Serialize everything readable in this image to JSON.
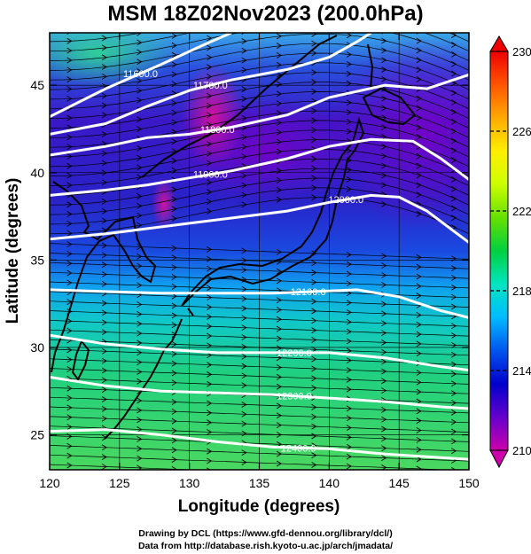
{
  "chart_data": {
    "type": "heatmap",
    "title": "MSM 18Z02Nov2023 (200.0hPa)",
    "xlabel": "Longitude (degrees)",
    "ylabel": "Latitude  (degrees)",
    "xlim": [
      120,
      150
    ],
    "ylim": [
      23,
      48
    ],
    "x_ticks": [
      "120",
      "125",
      "130",
      "135",
      "140",
      "145",
      "150"
    ],
    "y_ticks": [
      "25",
      "30",
      "35",
      "40",
      "45"
    ],
    "colorbar": {
      "min": 210,
      "max": 230,
      "ticks": [
        "210",
        "214",
        "218",
        "222",
        "226",
        "230"
      ],
      "colors": [
        "#cc00aa",
        "#6600cc",
        "#0000cc",
        "#0055ee",
        "#00bbff",
        "#00e5c0",
        "#00d040",
        "#66e000",
        "#ccff00",
        "#ffee00",
        "#ffaa00",
        "#ff5500",
        "#ee0000"
      ]
    },
    "contours": [
      {
        "label": "11600.0",
        "label_lon": 126.5,
        "points": [
          [
            120,
            43.2
          ],
          [
            124,
            44.8
          ],
          [
            128,
            46.2
          ],
          [
            131,
            47.3
          ],
          [
            133,
            48
          ]
        ]
      },
      {
        "label": "11700.0",
        "label_lon": 131.5,
        "points": [
          [
            120,
            42.2
          ],
          [
            124,
            42.8
          ],
          [
            127,
            43.8
          ],
          [
            130,
            44.7
          ],
          [
            133,
            45.3
          ],
          [
            137,
            45.9
          ],
          [
            140,
            46.6
          ],
          [
            142,
            47.5
          ],
          [
            143,
            48
          ]
        ]
      },
      {
        "label": "11800.0",
        "label_lon": 132.0,
        "points": [
          [
            120,
            41.0
          ],
          [
            124,
            41.5
          ],
          [
            127,
            42.0
          ],
          [
            130,
            42.2
          ],
          [
            133,
            42.6
          ],
          [
            137,
            43.3
          ],
          [
            140,
            44.3
          ],
          [
            144,
            45.0
          ],
          [
            147,
            44.8
          ],
          [
            150,
            45.6
          ]
        ]
      },
      {
        "label": "11900.0",
        "label_lon": 131.5,
        "points": [
          [
            120,
            38.7
          ],
          [
            124,
            39.0
          ],
          [
            127,
            39.3
          ],
          [
            130,
            39.7
          ],
          [
            133,
            40.1
          ],
          [
            137,
            40.8
          ],
          [
            140,
            41.5
          ],
          [
            143,
            41.9
          ],
          [
            146,
            41.8
          ],
          [
            148,
            40.8
          ],
          [
            150,
            39.6
          ]
        ]
      },
      {
        "label": "12000.0",
        "label_lon": 141.2,
        "points": [
          [
            120,
            36.2
          ],
          [
            124,
            36.5
          ],
          [
            127,
            36.8
          ],
          [
            130,
            37.1
          ],
          [
            133,
            37.4
          ],
          [
            137,
            37.8
          ],
          [
            140,
            38.3
          ],
          [
            143,
            38.7
          ],
          [
            145,
            38.6
          ],
          [
            147,
            37.8
          ],
          [
            150,
            36.0
          ]
        ]
      },
      {
        "label": "12100.0",
        "label_lon": 138.5,
        "points": [
          [
            120,
            33.3
          ],
          [
            124,
            33.2
          ],
          [
            128,
            33.1
          ],
          [
            132,
            33.1
          ],
          [
            136,
            33.1
          ],
          [
            139,
            33.2
          ],
          [
            142,
            33.3
          ],
          [
            145,
            32.9
          ],
          [
            148,
            32.1
          ],
          [
            150,
            31.7
          ]
        ]
      },
      {
        "label": "12200.0",
        "label_lon": 137.5,
        "points": [
          [
            120,
            30.7
          ],
          [
            124,
            30.2
          ],
          [
            128,
            29.9
          ],
          [
            132,
            29.7
          ],
          [
            136,
            29.7
          ],
          [
            140,
            29.7
          ],
          [
            144,
            29.4
          ],
          [
            148,
            28.9
          ],
          [
            150,
            28.7
          ]
        ]
      },
      {
        "label": "12300.0",
        "label_lon": 137.5,
        "points": [
          [
            120,
            28.3
          ],
          [
            124,
            27.8
          ],
          [
            128,
            27.5
          ],
          [
            132,
            27.4
          ],
          [
            136,
            27.3
          ],
          [
            140,
            27.1
          ],
          [
            144,
            26.9
          ],
          [
            148,
            26.6
          ],
          [
            150,
            26.5
          ]
        ]
      },
      {
        "label": "12400.0",
        "label_lon": 137.8,
        "points": [
          [
            120,
            25.2
          ],
          [
            124,
            25.3
          ],
          [
            128,
            25.0
          ],
          [
            132,
            24.6
          ],
          [
            136,
            24.3
          ],
          [
            140,
            24.2
          ],
          [
            144,
            23.9
          ],
          [
            148,
            23.7
          ],
          [
            150,
            23.6
          ]
        ]
      }
    ],
    "temperature_zones": [
      {
        "lat_min": 23,
        "lat_max": 29.5,
        "value": 221
      },
      {
        "lat_min": 29.5,
        "lat_max": 33.5,
        "value": 219
      },
      {
        "lat_min": 33.5,
        "lat_max": 36.5,
        "value": 216
      },
      {
        "lat_min": 36.5,
        "lat_max": 44,
        "value": 213.5
      },
      {
        "lat_min": 44,
        "lat_max": 48,
        "value": 216
      }
    ],
    "grid": true
  },
  "footer": {
    "line1": "Drawing by DCL (https://www.gfd-dennou.org/library/dcl/)",
    "line2": "Data from http://database.rish.kyoto-u.ac.jp/arch/jmadata/"
  }
}
